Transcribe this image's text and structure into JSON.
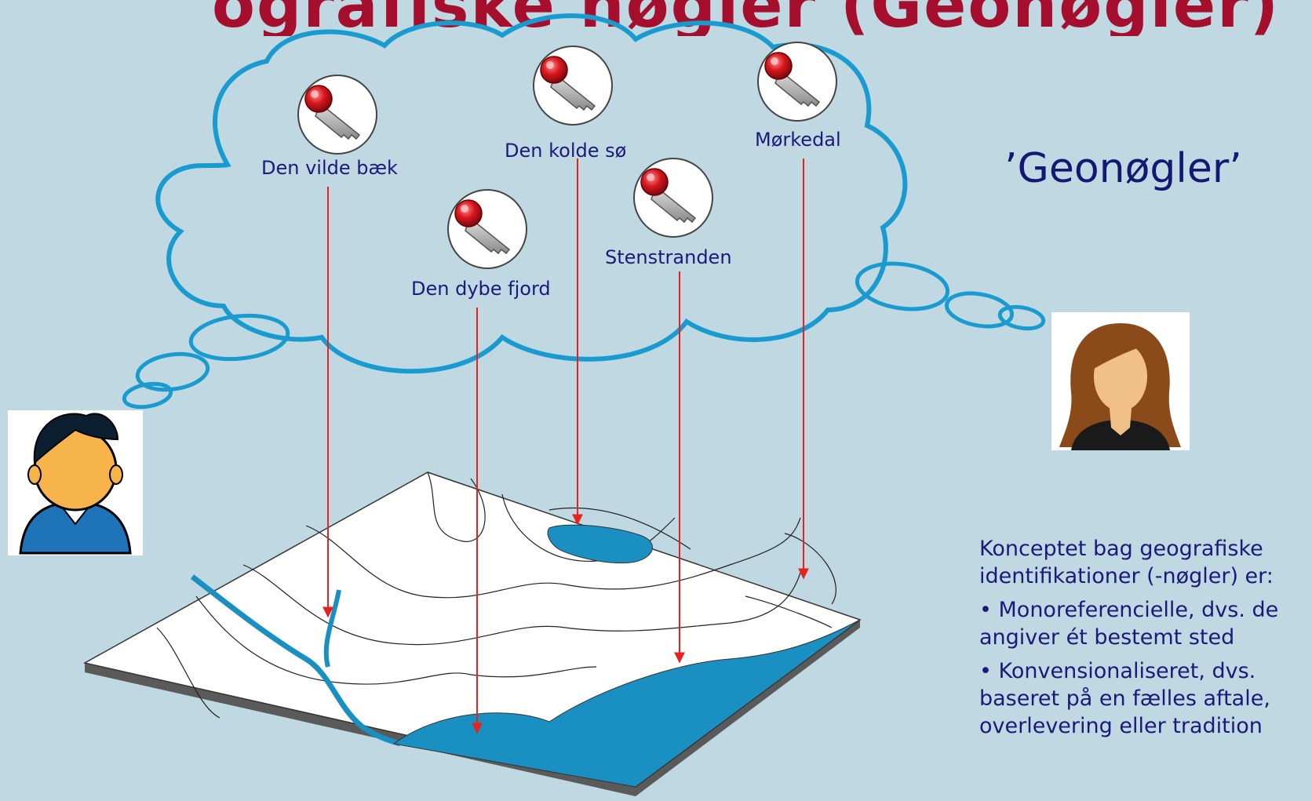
{
  "heading_partial": "ografiske nøgler (Geonøgler)",
  "title": "’Geonøgler’",
  "keys": [
    {
      "label": "Den vilde bæk"
    },
    {
      "label": "Den kolde sø"
    },
    {
      "label": "Mørkedal"
    },
    {
      "label": "Den dybe fjord"
    },
    {
      "label": "Stenstranden"
    }
  ],
  "description": {
    "intro": "Konceptet bag geografiske identifikationer (-nøgler) er:",
    "bullets": [
      "• Monoreferencielle, dvs. de angiver ét bestemt sted",
      "• Konvensionaliseret, dvs. baseret på en fælles aftale, overlevering eller tradition"
    ]
  },
  "colors": {
    "background": "#bfd8e2",
    "cloud_stroke": "#1a9bd0",
    "water": "#1a90c2",
    "arrow": "#e8201e",
    "text": "#1a1a7a",
    "title": "#111a73",
    "key_red": "#d8161e"
  },
  "icons": [
    "key-icon",
    "man-avatar",
    "woman-avatar"
  ]
}
